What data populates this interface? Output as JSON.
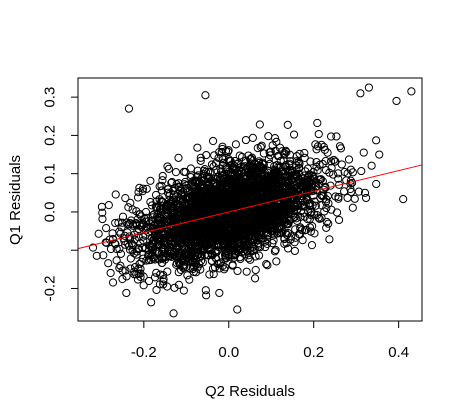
{
  "chart_data": {
    "type": "scatter",
    "title": "",
    "xlabel": "Q2 Residuals",
    "ylabel": "Q1 Residuals",
    "xlim": [
      -0.355,
      0.455
    ],
    "ylim": [
      -0.285,
      0.35
    ],
    "xticks": [
      -0.2,
      0.0,
      0.2,
      0.4
    ],
    "xtick_labels": [
      "-0.2",
      "0.0",
      "0.2",
      "0.4"
    ],
    "yticks": [
      -0.2,
      -0.1,
      0.0,
      0.1,
      0.2,
      0.3
    ],
    "ytick_labels": [
      "-0.2",
      "",
      "0.0",
      "0.1",
      "0.2",
      "0.3"
    ],
    "grid": false,
    "legend": "none",
    "marker": "open-circle",
    "n_points": 3000,
    "point_cloud": {
      "x_center": 0.0,
      "y_center": 0.0,
      "x_sd": 0.11,
      "y_sd": 0.07,
      "correlation": 0.45,
      "x_range": [
        -0.33,
        0.43
      ],
      "y_range": [
        -0.265,
        0.32
      ]
    },
    "highlighted_points": [
      {
        "x": -0.235,
        "y": 0.27
      },
      {
        "x": -0.055,
        "y": 0.305
      },
      {
        "x": 0.33,
        "y": 0.325
      },
      {
        "x": 0.31,
        "y": 0.31
      },
      {
        "x": 0.43,
        "y": 0.315
      },
      {
        "x": 0.395,
        "y": 0.29
      },
      {
        "x": -0.13,
        "y": -0.265
      },
      {
        "x": 0.02,
        "y": -0.255
      }
    ],
    "fit_line": {
      "intercept": 0.0,
      "slope": 0.27,
      "color": "#ff0000",
      "x_range": [
        -0.355,
        0.455
      ]
    },
    "point_color": "#000000",
    "axis_color": "#000000"
  }
}
